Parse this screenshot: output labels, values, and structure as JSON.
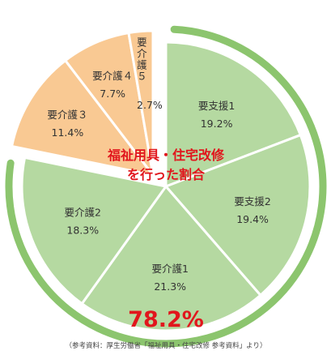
{
  "chart_data": {
    "type": "pie",
    "title_lines": [
      "福祉用具・住宅改修",
      "を行った割合"
    ],
    "highlight_value": "78.2%",
    "source": "（参考資料：厚生労働省「福祉用具・住宅改修 参考資料」より）",
    "slices": [
      {
        "name": "要支援1",
        "value": 19.2,
        "label": "19.2%",
        "group": "main"
      },
      {
        "name": "要支援2",
        "value": 19.4,
        "label": "19.4%",
        "group": "main"
      },
      {
        "name": "要介護1",
        "value": 21.3,
        "label": "21.3%",
        "group": "main"
      },
      {
        "name": "要介護2",
        "value": 18.3,
        "label": "18.3%",
        "group": "main"
      },
      {
        "name": "要介護３",
        "value": 11.4,
        "label": "11.4%",
        "group": "exploded"
      },
      {
        "name": "要介護４",
        "value": 7.7,
        "label": "7.7%",
        "group": "exploded"
      },
      {
        "name": "要介護５",
        "value": 2.7,
        "label": "2.7%",
        "group": "exploded"
      }
    ],
    "colors": {
      "main": "#b5d9a1",
      "exploded": "#f9c993",
      "border": "#ffffff",
      "ring": "#8cc56e",
      "accent": "#e1161d"
    }
  }
}
